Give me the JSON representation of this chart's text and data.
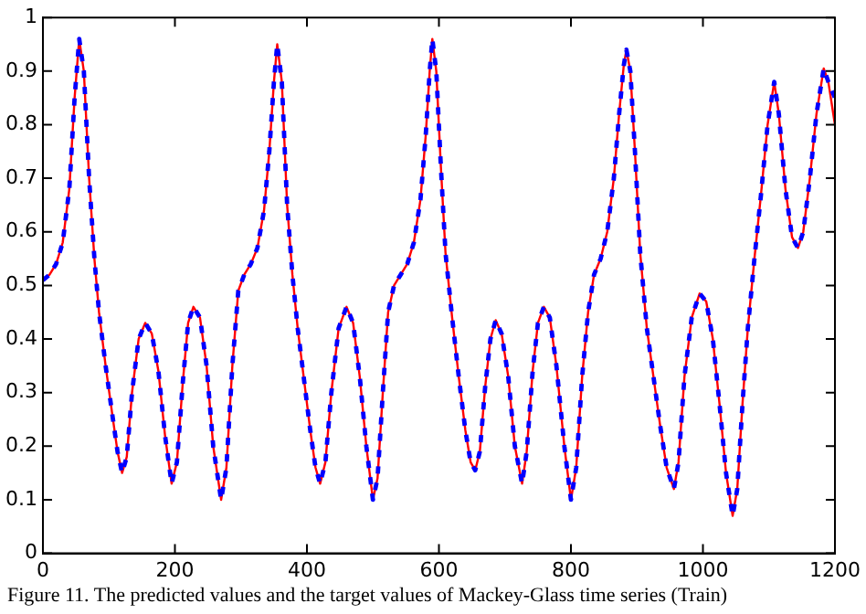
{
  "chart_data": {
    "type": "line",
    "annotations": [
      "Figure 11. The predicted values and the target values of Mackey-Glass time series (Train)"
    ],
    "x": [
      0,
      10,
      20,
      30,
      40,
      48,
      55,
      62,
      70,
      78,
      85,
      95,
      105,
      113,
      120,
      127,
      135,
      145,
      155,
      165,
      175,
      185,
      195,
      203,
      212,
      220,
      228,
      238,
      248,
      258,
      270,
      278,
      287,
      296,
      305,
      315,
      325,
      335,
      343,
      350,
      355,
      362,
      370,
      378,
      386,
      396,
      405,
      413,
      420,
      428,
      437,
      448,
      460,
      470,
      480,
      490,
      500,
      507,
      515,
      523,
      532,
      542,
      552,
      562,
      572,
      580,
      586,
      590,
      596,
      603,
      610,
      620,
      630,
      640,
      648,
      655,
      662,
      670,
      678,
      686,
      695,
      705,
      715,
      726,
      733,
      742,
      750,
      759,
      768,
      778,
      790,
      800,
      808,
      817,
      826,
      835,
      845,
      855,
      865,
      873,
      880,
      884,
      890,
      897,
      905,
      915,
      925,
      935,
      945,
      956,
      963,
      972,
      983,
      995,
      1005,
      1015,
      1025,
      1035,
      1045,
      1052,
      1060,
      1068,
      1078,
      1088,
      1098,
      1108,
      1115,
      1125,
      1135,
      1144,
      1152,
      1162,
      1172,
      1183,
      1190,
      1200
    ],
    "series": [
      {
        "color": "#ff0000",
        "line_style": "solid",
        "values": [
          0.51,
          0.52,
          0.54,
          0.58,
          0.68,
          0.85,
          0.96,
          0.9,
          0.7,
          0.55,
          0.45,
          0.35,
          0.26,
          0.19,
          0.15,
          0.18,
          0.3,
          0.4,
          0.43,
          0.41,
          0.34,
          0.22,
          0.13,
          0.17,
          0.32,
          0.43,
          0.46,
          0.44,
          0.35,
          0.2,
          0.1,
          0.16,
          0.35,
          0.49,
          0.52,
          0.54,
          0.57,
          0.64,
          0.75,
          0.88,
          0.95,
          0.88,
          0.65,
          0.52,
          0.42,
          0.32,
          0.23,
          0.16,
          0.13,
          0.17,
          0.3,
          0.42,
          0.46,
          0.43,
          0.33,
          0.2,
          0.1,
          0.14,
          0.3,
          0.45,
          0.5,
          0.52,
          0.54,
          0.58,
          0.66,
          0.78,
          0.9,
          0.96,
          0.9,
          0.72,
          0.56,
          0.44,
          0.33,
          0.23,
          0.17,
          0.155,
          0.19,
          0.31,
          0.4,
          0.435,
          0.41,
          0.33,
          0.2,
          0.13,
          0.19,
          0.34,
          0.43,
          0.46,
          0.44,
          0.35,
          0.2,
          0.1,
          0.16,
          0.33,
          0.45,
          0.52,
          0.55,
          0.6,
          0.7,
          0.82,
          0.91,
          0.94,
          0.9,
          0.75,
          0.56,
          0.42,
          0.33,
          0.24,
          0.16,
          0.12,
          0.17,
          0.33,
          0.44,
          0.485,
          0.47,
          0.4,
          0.28,
          0.15,
          0.07,
          0.12,
          0.28,
          0.42,
          0.55,
          0.67,
          0.8,
          0.88,
          0.82,
          0.68,
          0.59,
          0.57,
          0.6,
          0.7,
          0.82,
          0.905,
          0.88,
          0.8
        ]
      },
      {
        "color": "#0000ff",
        "line_style": "dashed",
        "values": [
          0.51,
          0.52,
          0.54,
          0.58,
          0.68,
          0.85,
          0.96,
          0.9,
          0.7,
          0.55,
          0.45,
          0.35,
          0.26,
          0.19,
          0.15,
          0.18,
          0.3,
          0.4,
          0.43,
          0.41,
          0.34,
          0.22,
          0.13,
          0.17,
          0.32,
          0.43,
          0.46,
          0.44,
          0.35,
          0.2,
          0.1,
          0.16,
          0.35,
          0.49,
          0.52,
          0.54,
          0.57,
          0.64,
          0.75,
          0.88,
          0.95,
          0.88,
          0.65,
          0.52,
          0.42,
          0.32,
          0.23,
          0.16,
          0.13,
          0.17,
          0.3,
          0.42,
          0.46,
          0.43,
          0.33,
          0.2,
          0.1,
          0.14,
          0.3,
          0.45,
          0.5,
          0.52,
          0.54,
          0.58,
          0.66,
          0.78,
          0.9,
          0.96,
          0.9,
          0.72,
          0.56,
          0.44,
          0.33,
          0.23,
          0.17,
          0.155,
          0.19,
          0.31,
          0.4,
          0.435,
          0.41,
          0.33,
          0.2,
          0.13,
          0.19,
          0.34,
          0.43,
          0.46,
          0.44,
          0.35,
          0.2,
          0.1,
          0.16,
          0.33,
          0.45,
          0.52,
          0.55,
          0.6,
          0.7,
          0.82,
          0.91,
          0.94,
          0.9,
          0.75,
          0.56,
          0.42,
          0.33,
          0.24,
          0.16,
          0.12,
          0.17,
          0.33,
          0.44,
          0.485,
          0.47,
          0.4,
          0.28,
          0.15,
          0.07,
          0.12,
          0.28,
          0.42,
          0.55,
          0.67,
          0.8,
          0.88,
          0.82,
          0.68,
          0.59,
          0.57,
          0.6,
          0.7,
          0.82,
          0.905,
          0.88,
          0.85
        ]
      }
    ],
    "xlim": [
      0,
      1200
    ],
    "xticks": [
      0,
      200,
      400,
      600,
      800,
      1000,
      1200
    ],
    "ylim": [
      0,
      1
    ],
    "yticks": [
      0,
      0.1,
      0.2,
      0.3,
      0.4,
      0.5,
      0.6,
      0.7,
      0.8,
      0.9,
      1
    ],
    "grid": false,
    "legend": false,
    "marker": "none"
  }
}
